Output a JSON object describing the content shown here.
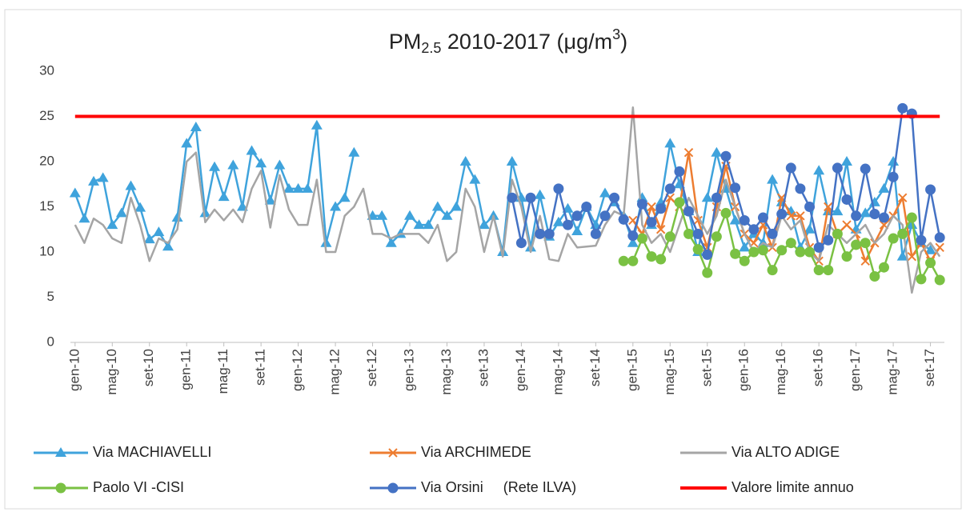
{
  "chart_data": {
    "type": "line",
    "title_parts": [
      "PM",
      "2.5",
      " 2010-2017 (μg/m",
      "3",
      ")"
    ],
    "categories": [
      "gen-10",
      null,
      null,
      null,
      "mag-10",
      null,
      null,
      null,
      "set-10",
      null,
      null,
      null,
      "gen-11",
      null,
      null,
      null,
      "mag-11",
      null,
      null,
      null,
      "set-11",
      null,
      null,
      null,
      "gen-12",
      null,
      null,
      null,
      "mag-12",
      null,
      null,
      null,
      "set-12",
      null,
      null,
      null,
      "gen-13",
      null,
      null,
      null,
      "mag-13",
      null,
      null,
      null,
      "set-13",
      null,
      null,
      null,
      "gen-14",
      null,
      null,
      null,
      "mag-14",
      null,
      null,
      null,
      "set-14",
      null,
      null,
      null,
      "gen-15",
      null,
      null,
      null,
      "mag-15",
      null,
      null,
      null,
      "set-15",
      null,
      null,
      null,
      "gen-16",
      null,
      null,
      null,
      "mag-16",
      null,
      null,
      null,
      "set-16",
      null,
      null,
      null,
      "gen-17",
      null,
      null,
      null,
      "mag-17",
      null,
      null,
      null,
      "set-17",
      null
    ],
    "ylim": [
      0,
      30
    ],
    "yticks": [
      0,
      5,
      10,
      15,
      20,
      25,
      30
    ],
    "grid": false,
    "legend": "bottom",
    "series": [
      {
        "name": "Via MACHIAVELLI",
        "color": "#3fa3dc",
        "marker": "triangle",
        "values": [
          16.5,
          13.7,
          17.8,
          18.2,
          13,
          14.3,
          17.3,
          14.9,
          11.4,
          12.2,
          10.6,
          13.8,
          22,
          23.8,
          14.3,
          19.4,
          16.1,
          19.6,
          15,
          21.2,
          19.8,
          15.7,
          19.6,
          17,
          17,
          17,
          24,
          11,
          15,
          16,
          21,
          null,
          14,
          14,
          11,
          12,
          14,
          13,
          13,
          15,
          14,
          15,
          20,
          18,
          13,
          14,
          10,
          20,
          16,
          10.5,
          16.3,
          11.7,
          13.3,
          14.8,
          12.3,
          15,
          13,
          16.5,
          15.5,
          14,
          11,
          16,
          13,
          15.5,
          22,
          17.5,
          14.5,
          10,
          16,
          21,
          17,
          13.5,
          10.5,
          12,
          11,
          18,
          15.5,
          14.5,
          10.5,
          12.5,
          19,
          14.5,
          14.5,
          20,
          12.5,
          14.3,
          15.5,
          17,
          20,
          9.5,
          13,
          11,
          10.2,
          null
        ]
      },
      {
        "name": "Via ARCHIMEDE",
        "color": "#ed7d31",
        "marker": "x",
        "values": [
          null,
          null,
          null,
          null,
          null,
          null,
          null,
          null,
          null,
          null,
          null,
          null,
          null,
          null,
          null,
          null,
          null,
          null,
          null,
          null,
          null,
          null,
          null,
          null,
          null,
          null,
          null,
          null,
          null,
          null,
          null,
          null,
          null,
          null,
          null,
          null,
          null,
          null,
          null,
          null,
          null,
          null,
          null,
          null,
          null,
          null,
          null,
          null,
          null,
          null,
          null,
          null,
          null,
          null,
          null,
          null,
          null,
          null,
          null,
          null,
          13.5,
          12,
          15,
          12.5,
          16,
          15,
          21,
          13.5,
          10.5,
          15,
          19.5,
          15,
          12,
          11,
          13,
          10.5,
          16,
          14,
          14,
          10.5,
          9,
          15,
          12,
          13,
          12,
          9,
          11,
          13,
          14,
          16,
          9.5,
          11,
          9,
          10.5
        ]
      },
      {
        "name": "Via ALTO ADIGE",
        "color": "#a5a5a5",
        "marker": "none",
        "values": [
          13,
          11,
          13.7,
          13,
          11.5,
          11,
          16,
          13,
          9,
          11.5,
          11,
          12.5,
          20,
          21,
          13.3,
          14.7,
          13.5,
          14.7,
          13.3,
          17,
          19,
          12.7,
          18.5,
          14.7,
          13,
          13,
          18,
          10,
          10,
          14,
          15,
          17,
          12,
          12,
          11.5,
          12,
          12,
          12,
          11,
          13,
          9,
          10,
          17,
          15,
          10,
          14,
          9.5,
          18,
          15,
          10,
          14,
          9.2,
          9,
          12,
          10.5,
          10.6,
          10.7,
          13,
          14.5,
          14,
          26,
          13,
          11,
          12,
          10,
          13,
          16,
          14,
          12,
          14,
          18,
          15,
          12,
          10,
          11,
          10.5,
          14,
          12.5,
          13.5,
          10,
          9,
          13,
          12,
          11,
          12,
          13,
          11,
          12,
          14,
          13,
          5.5,
          10,
          11,
          9.5
        ]
      },
      {
        "name": "Paolo VI -CISI",
        "color": "#7ac143",
        "marker": "circle",
        "values": [
          null,
          null,
          null,
          null,
          null,
          null,
          null,
          null,
          null,
          null,
          null,
          null,
          null,
          null,
          null,
          null,
          null,
          null,
          null,
          null,
          null,
          null,
          null,
          null,
          null,
          null,
          null,
          null,
          null,
          null,
          null,
          null,
          null,
          null,
          null,
          null,
          null,
          null,
          null,
          null,
          null,
          null,
          null,
          null,
          null,
          null,
          null,
          null,
          null,
          null,
          null,
          null,
          null,
          null,
          null,
          null,
          null,
          null,
          null,
          9,
          9,
          11.5,
          9.5,
          9.2,
          11.7,
          15.5,
          12,
          10.3,
          7.7,
          11.7,
          14.3,
          9.8,
          9,
          10,
          10.2,
          8,
          10.2,
          11,
          10,
          10,
          8,
          8,
          12,
          9.5,
          10.8,
          11,
          7.3,
          8.3,
          11.5,
          12,
          13.8,
          7,
          8.8,
          6.9
        ]
      },
      {
        "name": "Via Orsini     (Rete ILVA)",
        "color": "#4472c4",
        "marker": "circle",
        "values": [
          null,
          null,
          null,
          null,
          null,
          null,
          null,
          null,
          null,
          null,
          null,
          null,
          null,
          null,
          null,
          null,
          null,
          null,
          null,
          null,
          null,
          null,
          null,
          null,
          null,
          null,
          null,
          null,
          null,
          null,
          null,
          null,
          null,
          null,
          null,
          null,
          null,
          null,
          null,
          null,
          null,
          null,
          null,
          null,
          null,
          null,
          null,
          16,
          11,
          16,
          12,
          12,
          17,
          13,
          14,
          15,
          12,
          14,
          16,
          13.6,
          11.8,
          15.3,
          13.3,
          14.8,
          17,
          18.9,
          14.5,
          12,
          9.7,
          16,
          20.6,
          17.1,
          13.5,
          12.5,
          13.8,
          12,
          14.2,
          19.3,
          17,
          15,
          10.5,
          11.3,
          19.3,
          15.8,
          14,
          19.2,
          14.2,
          13.8,
          18.3,
          25.9,
          25.3,
          11.3,
          16.9,
          11.6
        ]
      },
      {
        "name": "Valore limite annuo",
        "color": "#ff0000",
        "marker": "none",
        "width": 4,
        "values": [
          25,
          25,
          25,
          25,
          25,
          25,
          25,
          25,
          25,
          25,
          25,
          25,
          25,
          25,
          25,
          25,
          25,
          25,
          25,
          25,
          25,
          25,
          25,
          25,
          25,
          25,
          25,
          25,
          25,
          25,
          25,
          25,
          25,
          25,
          25,
          25,
          25,
          25,
          25,
          25,
          25,
          25,
          25,
          25,
          25,
          25,
          25,
          25,
          25,
          25,
          25,
          25,
          25,
          25,
          25,
          25,
          25,
          25,
          25,
          25,
          25,
          25,
          25,
          25,
          25,
          25,
          25,
          25,
          25,
          25,
          25,
          25,
          25,
          25,
          25,
          25,
          25,
          25,
          25,
          25,
          25,
          25,
          25,
          25,
          25,
          25,
          25,
          25,
          25,
          25,
          25,
          25,
          25,
          25
        ]
      }
    ]
  }
}
